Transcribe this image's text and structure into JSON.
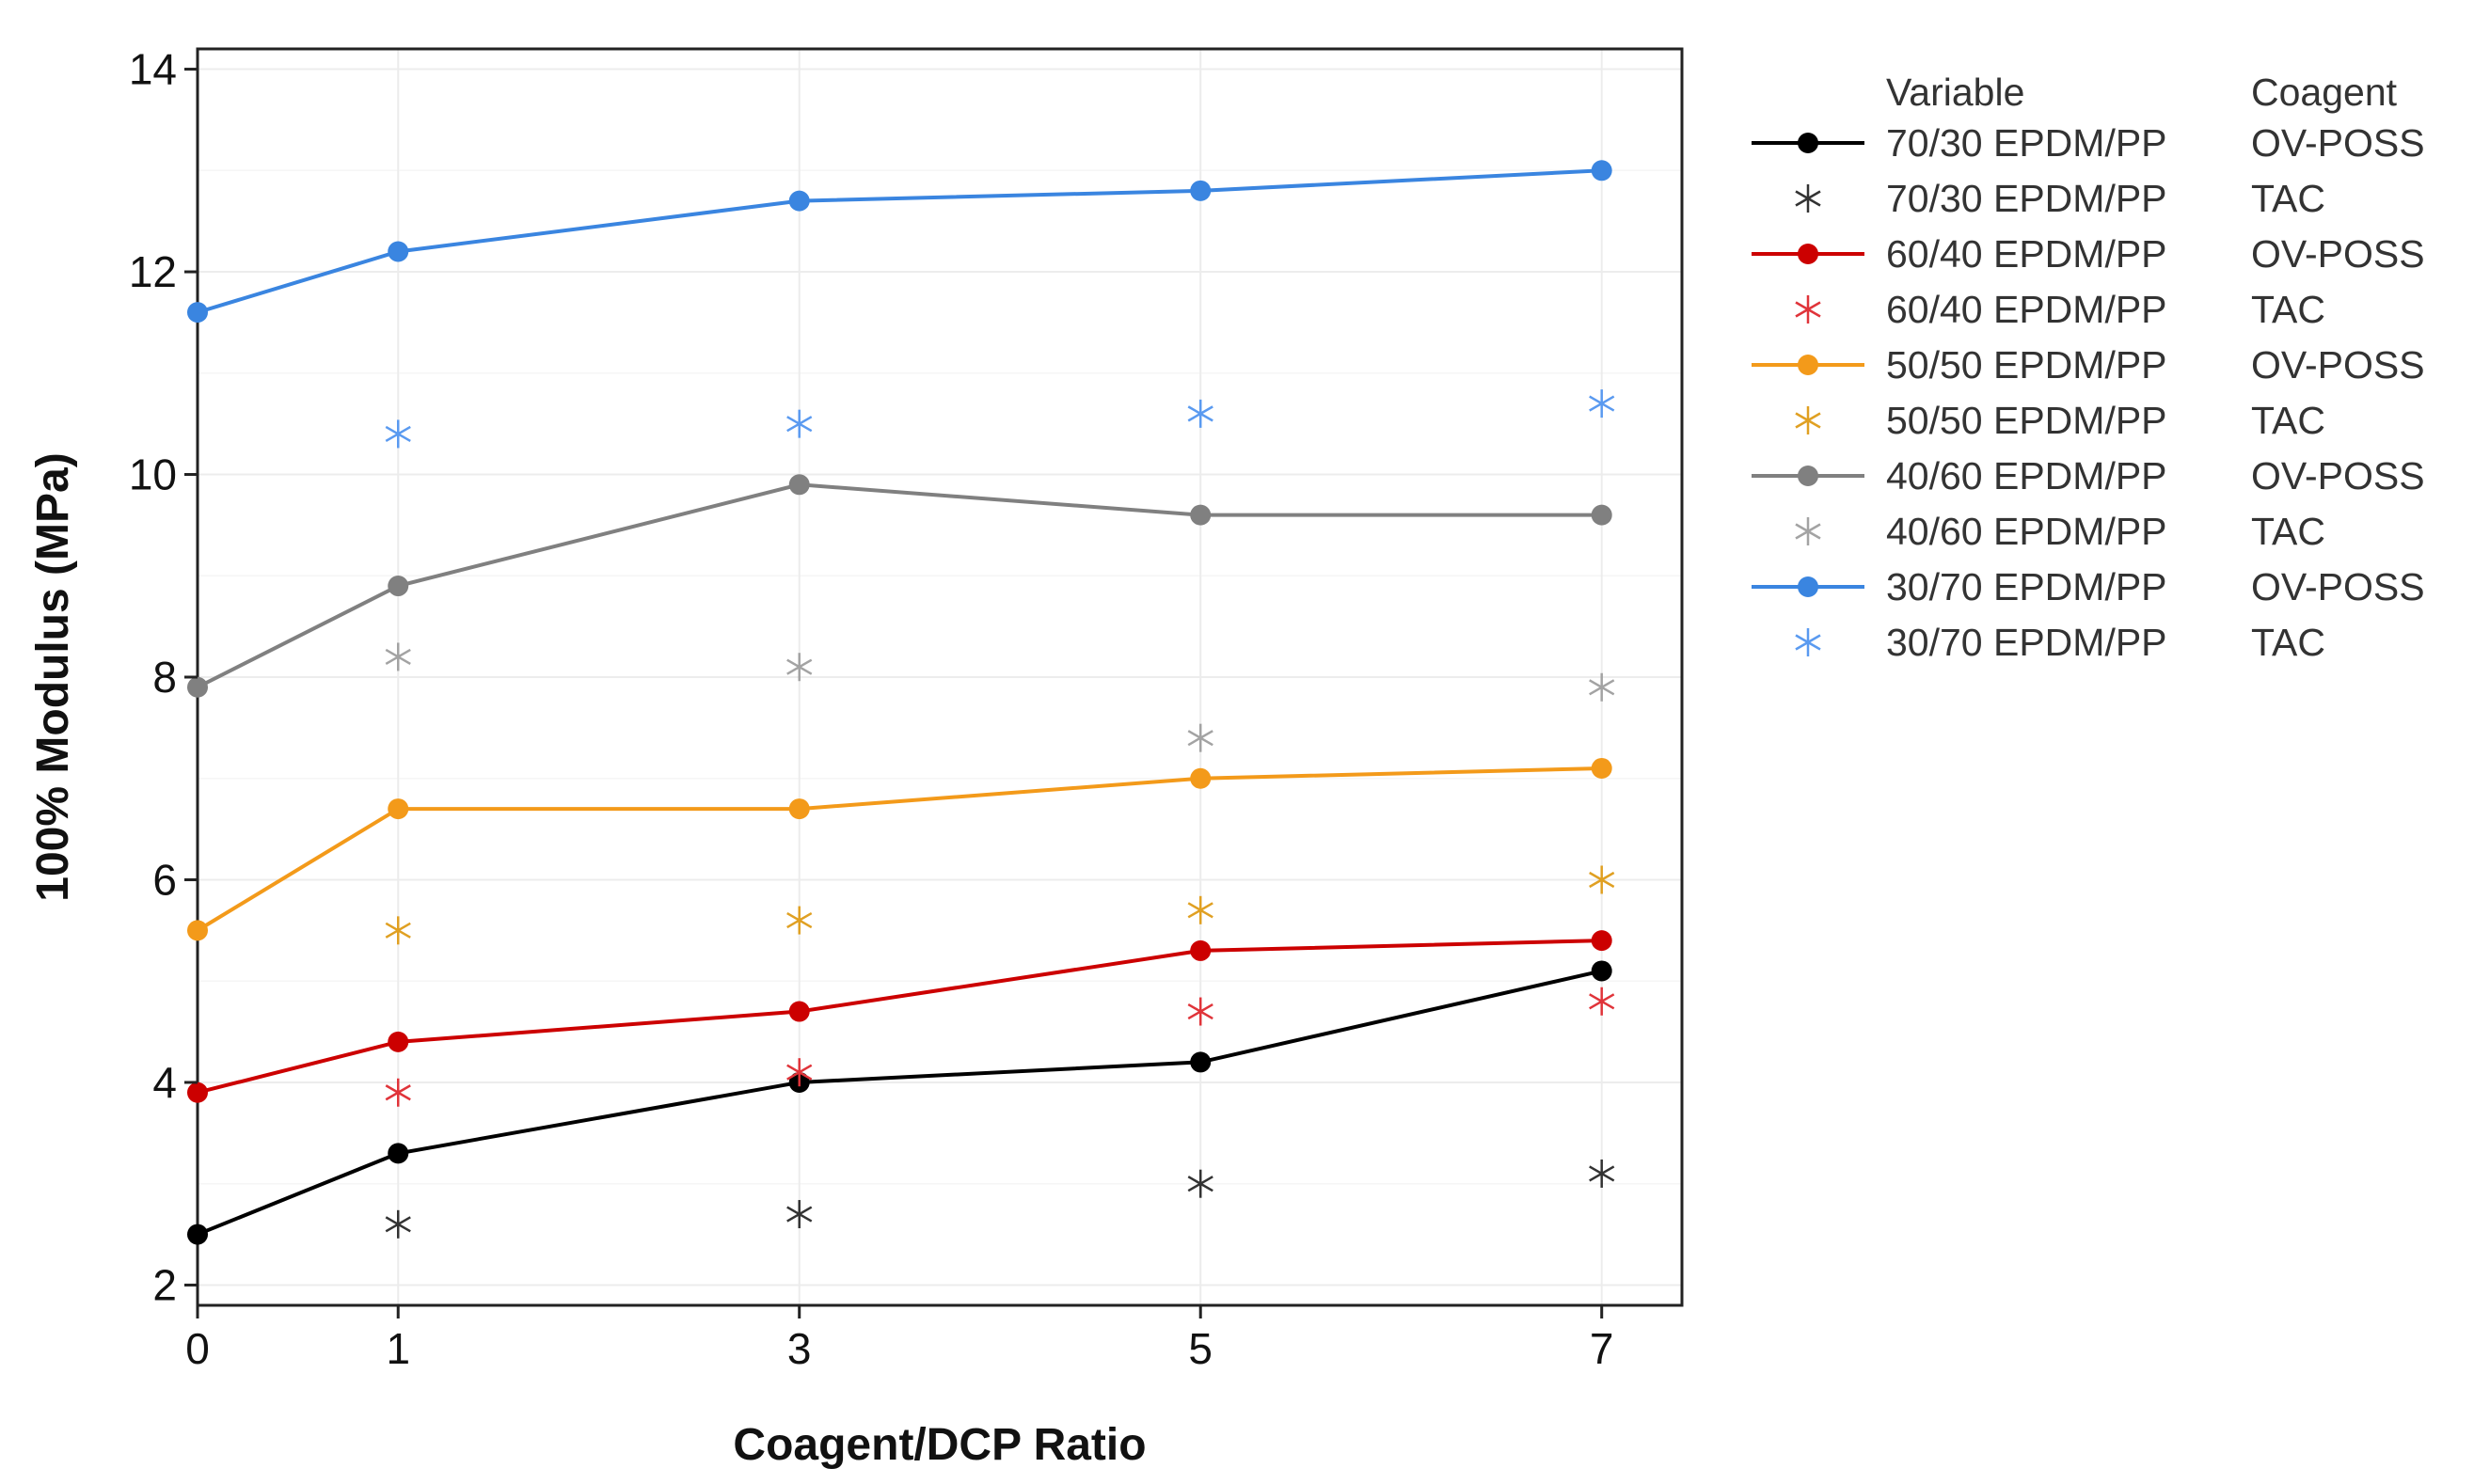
{
  "chart_data": {
    "type": "line",
    "xlabel": "Coagent/DCP Ratio",
    "ylabel": "100% Modulus (MPa)",
    "x": [
      0,
      1,
      3,
      5,
      7
    ],
    "x_ticks": [
      0,
      1,
      3,
      5,
      7
    ],
    "y_ticks": [
      2,
      4,
      6,
      8,
      10,
      12,
      14
    ],
    "xlim": [
      0,
      7.4
    ],
    "ylim": [
      1.8,
      14.2
    ],
    "grid": true,
    "legend": {
      "position": "right",
      "header_variable": "Variable",
      "header_coagent": "Coagent"
    },
    "series": [
      {
        "variable": "70/30 EPDM/PP",
        "coagent": "OV-POSS",
        "color": "#000000",
        "marker": "circle",
        "line": true,
        "x": [
          0,
          1,
          3,
          5,
          7
        ],
        "values": [
          2.5,
          3.3,
          4.0,
          4.2,
          5.1
        ]
      },
      {
        "variable": "70/30 EPDM/PP",
        "coagent": "TAC",
        "color": "#333333",
        "marker": "asterisk",
        "line": false,
        "x": [
          1,
          3,
          5,
          7
        ],
        "values": [
          2.6,
          2.7,
          3.0,
          3.1
        ]
      },
      {
        "variable": "60/40 EPDM/PP",
        "coagent": "OV-POSS",
        "color": "#cc0000",
        "marker": "circle",
        "line": true,
        "x": [
          0,
          1,
          3,
          5,
          7
        ],
        "values": [
          3.9,
          4.4,
          4.7,
          5.3,
          5.4
        ]
      },
      {
        "variable": "60/40 EPDM/PP",
        "coagent": "TAC",
        "color": "#e0343a",
        "marker": "asterisk",
        "line": false,
        "x": [
          1,
          3,
          5,
          7
        ],
        "values": [
          3.9,
          4.1,
          4.7,
          4.8
        ]
      },
      {
        "variable": "50/50 EPDM/PP",
        "coagent": "OV-POSS",
        "color": "#f39a1a",
        "marker": "circle",
        "line": true,
        "x": [
          0,
          1,
          3,
          5,
          7
        ],
        "values": [
          5.5,
          6.7,
          6.7,
          7.0,
          7.1
        ]
      },
      {
        "variable": "50/50 EPDM/PP",
        "coagent": "TAC",
        "color": "#e0a022",
        "marker": "asterisk",
        "line": false,
        "x": [
          1,
          3,
          5,
          7
        ],
        "values": [
          5.5,
          5.6,
          5.7,
          6.0
        ]
      },
      {
        "variable": "40/60 EPDM/PP",
        "coagent": "OV-POSS",
        "color": "#808080",
        "marker": "circle",
        "line": true,
        "x": [
          0,
          1,
          3,
          5,
          7
        ],
        "values": [
          7.9,
          8.9,
          9.9,
          9.6,
          9.6
        ]
      },
      {
        "variable": "40/60 EPDM/PP",
        "coagent": "TAC",
        "color": "#a3a3a3",
        "marker": "asterisk",
        "line": false,
        "x": [
          1,
          3,
          5,
          7
        ],
        "values": [
          8.2,
          8.1,
          7.4,
          7.9
        ]
      },
      {
        "variable": "30/70 EPDM/PP",
        "coagent": "OV-POSS",
        "color": "#3a85e0",
        "marker": "circle",
        "line": true,
        "x": [
          0,
          1,
          3,
          5,
          7
        ],
        "values": [
          11.6,
          12.2,
          12.7,
          12.8,
          13.0
        ]
      },
      {
        "variable": "30/70 EPDM/PP",
        "coagent": "TAC",
        "color": "#5a9af0",
        "marker": "asterisk",
        "line": false,
        "x": [
          1,
          3,
          5,
          7
        ],
        "values": [
          10.4,
          10.5,
          10.6,
          10.7
        ]
      }
    ]
  }
}
